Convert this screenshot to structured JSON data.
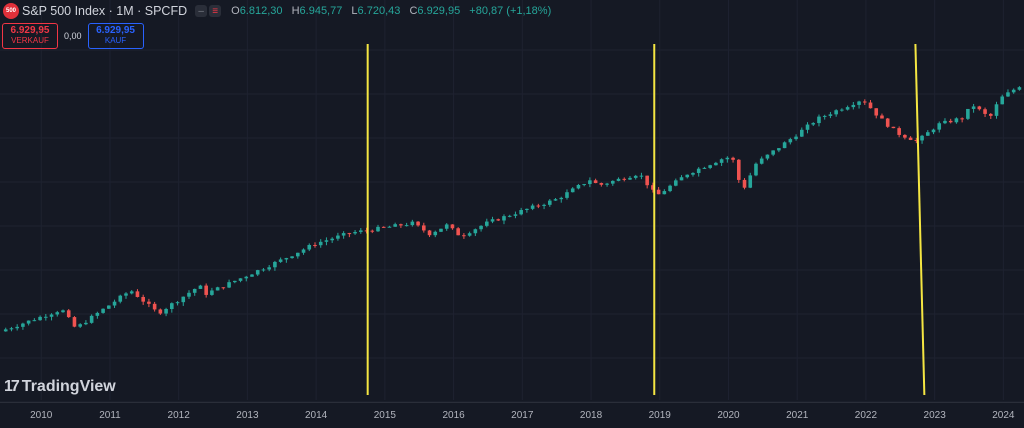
{
  "header": {
    "logo_text": "500",
    "title": "S&P 500 Index · 1M · SPCFD",
    "ohlc": {
      "o_label": "O",
      "o": "6.812,30",
      "h_label": "H",
      "h": "6.945,77",
      "l_label": "L",
      "l": "6.720,43",
      "c_label": "C",
      "c": "6.929,95",
      "change": "+80,87 (+1,18%)"
    }
  },
  "trade": {
    "sell_price": "6.929,95",
    "sell_label": "VERKAUF",
    "spread": "0,00",
    "buy_price": "6.929,95",
    "buy_label": "KAUF"
  },
  "brand": {
    "name": "TradingView"
  },
  "colors": {
    "up": "#26a69a",
    "down": "#ef5350",
    "marker": "#f5e642",
    "bg": "#151924",
    "grid": "#1e2230"
  },
  "chart_data": {
    "type": "candlestick",
    "xlabel": "",
    "ylabel": "",
    "x_ticks": [
      "2010",
      "2011",
      "2012",
      "2013",
      "2014",
      "2015",
      "2016",
      "2017",
      "2018",
      "2019",
      "2020",
      "2021",
      "2022",
      "2023",
      "2024"
    ],
    "x_range": [
      2009.4,
      2024.3
    ],
    "y_range": [
      800,
      5400
    ],
    "scale": "log",
    "grid": true,
    "vertical_markers": [
      {
        "x_top": 2014.75,
        "x_bottom": 2014.75
      },
      {
        "x_top": 2018.92,
        "x_bottom": 2018.92
      },
      {
        "x_top": 2022.72,
        "x_bottom": 2022.85
      }
    ],
    "anchors": [
      [
        2009.4,
        1020
      ],
      [
        2010.3,
        1180
      ],
      [
        2010.5,
        1040
      ],
      [
        2011.3,
        1340
      ],
      [
        2011.7,
        1150
      ],
      [
        2012.3,
        1380
      ],
      [
        2012.4,
        1310
      ],
      [
        2013.0,
        1480
      ],
      [
        2013.5,
        1640
      ],
      [
        2014.0,
        1830
      ],
      [
        2014.5,
        1960
      ],
      [
        2014.8,
        2000
      ],
      [
        2015.4,
        2090
      ],
      [
        2015.65,
        1950
      ],
      [
        2015.9,
        2060
      ],
      [
        2016.1,
        1920
      ],
      [
        2016.5,
        2100
      ],
      [
        2017.0,
        2270
      ],
      [
        2017.5,
        2450
      ],
      [
        2018.0,
        2800
      ],
      [
        2018.1,
        2680
      ],
      [
        2018.7,
        2910
      ],
      [
        2018.95,
        2500
      ],
      [
        2019.4,
        2900
      ],
      [
        2019.9,
        3200
      ],
      [
        2020.05,
        3250
      ],
      [
        2020.2,
        2580
      ],
      [
        2020.4,
        3100
      ],
      [
        2020.9,
        3650
      ],
      [
        2021.3,
        4180
      ],
      [
        2021.95,
        4760
      ],
      [
        2022.2,
        4200
      ],
      [
        2022.45,
        3800
      ],
      [
        2022.75,
        3600
      ],
      [
        2023.05,
        4020
      ],
      [
        2023.4,
        4200
      ],
      [
        2023.55,
        4580
      ],
      [
        2023.8,
        4190
      ],
      [
        2023.95,
        4770
      ],
      [
        2024.3,
        5300
      ]
    ]
  }
}
